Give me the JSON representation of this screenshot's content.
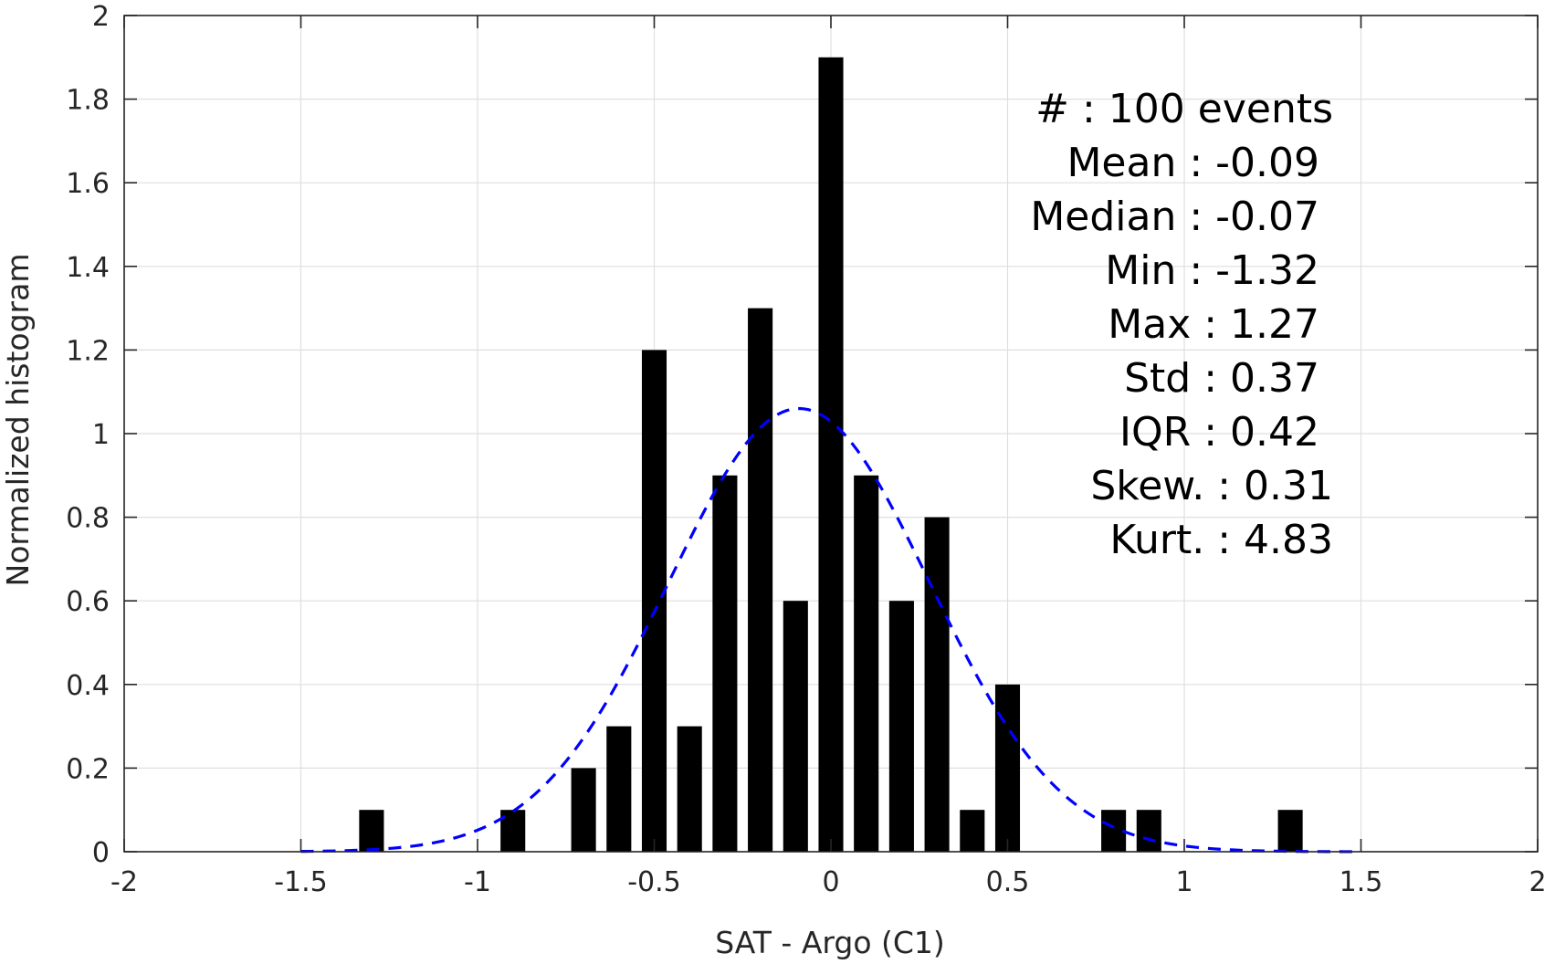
{
  "chart_data": {
    "type": "bar",
    "xlabel": "SAT - Argo (C1)",
    "ylabel": "Normalized histogram",
    "xlim": [
      -2,
      2
    ],
    "ylim": [
      0,
      2
    ],
    "xticks": [
      "-2",
      "-1.5",
      "-1",
      "-0.5",
      "0",
      "0.5",
      "1",
      "1.5",
      "2"
    ],
    "yticks": [
      "0",
      "0.2",
      "0.4",
      "0.6",
      "0.8",
      "1",
      "1.2",
      "1.4",
      "1.6",
      "1.8",
      "2"
    ],
    "grid": true,
    "bar_color": "#000000",
    "bar_width": 0.07,
    "bars": [
      {
        "x": -1.3,
        "y": 0.1
      },
      {
        "x": -0.9,
        "y": 0.1
      },
      {
        "x": -0.7,
        "y": 0.2
      },
      {
        "x": -0.6,
        "y": 0.3
      },
      {
        "x": -0.5,
        "y": 1.2
      },
      {
        "x": -0.4,
        "y": 0.3
      },
      {
        "x": -0.3,
        "y": 0.9
      },
      {
        "x": -0.2,
        "y": 1.3
      },
      {
        "x": -0.1,
        "y": 0.6
      },
      {
        "x": 0.0,
        "y": 1.9
      },
      {
        "x": 0.1,
        "y": 0.9
      },
      {
        "x": 0.2,
        "y": 0.6
      },
      {
        "x": 0.3,
        "y": 0.8
      },
      {
        "x": 0.4,
        "y": 0.1
      },
      {
        "x": 0.5,
        "y": 0.4
      },
      {
        "x": 0.8,
        "y": 0.1
      },
      {
        "x": 0.9,
        "y": 0.1
      },
      {
        "x": 1.3,
        "y": 0.1
      }
    ],
    "fit_curve": {
      "style": "dashed",
      "color": "#0000ff",
      "mean": -0.09,
      "std": 0.37,
      "peak": 1.06,
      "x_range": [
        -1.5,
        1.5
      ]
    },
    "stats": [
      {
        "label": "#",
        "sep": " : ",
        "value": "100 events"
      },
      {
        "label": "Mean",
        "sep": " : ",
        "value": "-0.09"
      },
      {
        "label": "Median",
        "sep": " : ",
        "value": "-0.07"
      },
      {
        "label": "Min",
        "sep": " : ",
        "value": "-1.32"
      },
      {
        "label": "Max",
        "sep": " : ",
        "value": "1.27"
      },
      {
        "label": "Std",
        "sep": " : ",
        "value": "0.37"
      },
      {
        "label": "IQR",
        "sep": " : ",
        "value": "0.42"
      },
      {
        "label": "Skew.",
        "sep": " : ",
        "value": "0.31"
      },
      {
        "label": "Kurt.",
        "sep": " : ",
        "value": "4.83"
      }
    ]
  }
}
